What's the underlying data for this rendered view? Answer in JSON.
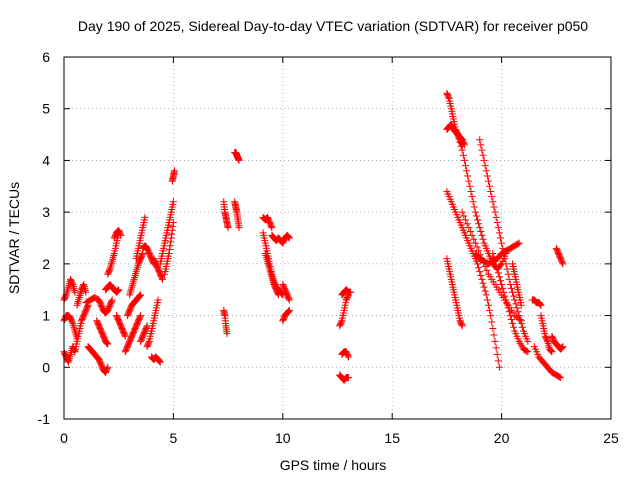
{
  "chart_data": {
    "type": "scatter",
    "title": "Day 190 of 2025, Sidereal Day-to-day VTEC variation (SDTVAR) for receiver p050",
    "xlabel": "GPS time / hours",
    "ylabel": "SDTVAR / TECUs",
    "xlim": [
      0,
      25
    ],
    "ylim": [
      -1,
      6
    ],
    "xticks": [
      0,
      5,
      10,
      15,
      20,
      25
    ],
    "yticks": [
      -1,
      0,
      1,
      2,
      3,
      4,
      5,
      6
    ],
    "xtick_labels": [
      "0",
      "5",
      "10",
      "15",
      "20",
      "25"
    ],
    "ytick_labels": [
      "-1",
      "0",
      "1",
      "2",
      "3",
      "4",
      "5",
      "6"
    ],
    "grid": true,
    "marker": "+",
    "color": "#ff0000",
    "series": [
      {
        "name": "SDTVAR",
        "tracks": [
          {
            "x": [
              0.0,
              0.1,
              0.2,
              0.3,
              0.4,
              0.5
            ],
            "y": [
              0.3,
              0.2,
              0.1,
              0.25,
              0.4,
              0.3
            ]
          },
          {
            "x": [
              0.0,
              0.1,
              0.2,
              0.3,
              0.4,
              0.5,
              0.6
            ],
            "y": [
              0.9,
              1.0,
              1.0,
              0.95,
              0.85,
              0.7,
              0.55
            ]
          },
          {
            "x": [
              0.0,
              0.1,
              0.2,
              0.3,
              0.4,
              0.5
            ],
            "y": [
              1.3,
              1.4,
              1.55,
              1.7,
              1.6,
              1.45
            ]
          },
          {
            "x": [
              0.5,
              0.6,
              0.7,
              0.8,
              0.9,
              1.0,
              1.1
            ],
            "y": [
              0.3,
              0.5,
              0.7,
              0.9,
              1.0,
              1.1,
              1.2
            ]
          },
          {
            "x": [
              0.6,
              0.7,
              0.8,
              0.9,
              1.0
            ],
            "y": [
              1.2,
              1.35,
              1.5,
              1.6,
              1.45
            ]
          },
          {
            "x": [
              1.0,
              1.2,
              1.4,
              1.6
            ],
            "y": [
              1.25,
              1.3,
              1.35,
              1.3
            ]
          },
          {
            "x": [
              1.1,
              1.2,
              1.3,
              1.4,
              1.5,
              1.6,
              1.7,
              1.8,
              1.9,
              2.0
            ],
            "y": [
              0.4,
              0.35,
              0.3,
              0.25,
              0.2,
              0.15,
              0.05,
              -0.05,
              -0.1,
              0.0
            ]
          },
          {
            "x": [
              1.5,
              1.6,
              1.7,
              1.8,
              1.9,
              2.0
            ],
            "y": [
              0.9,
              0.8,
              0.7,
              0.6,
              0.5,
              0.45
            ]
          },
          {
            "x": [
              1.6,
              1.7,
              1.8,
              1.9,
              2.0,
              2.1,
              2.2
            ],
            "y": [
              1.3,
              1.2,
              1.1,
              1.05,
              1.1,
              1.2,
              1.3
            ]
          },
          {
            "x": [
              1.9,
              2.0,
              2.1,
              2.2,
              2.3,
              2.4,
              2.5
            ],
            "y": [
              1.5,
              1.55,
              1.6,
              1.55,
              1.5,
              1.45,
              1.5
            ]
          },
          {
            "x": [
              2.0,
              2.1,
              2.2,
              2.3,
              2.4,
              2.5
            ],
            "y": [
              1.8,
              1.9,
              2.05,
              2.2,
              2.4,
              2.6
            ]
          },
          {
            "x": [
              2.3,
              2.4,
              2.5,
              2.6
            ],
            "y": [
              2.5,
              2.6,
              2.65,
              2.55
            ]
          },
          {
            "x": [
              2.4,
              2.5,
              2.6,
              2.7,
              2.8
            ],
            "y": [
              1.0,
              0.9,
              0.8,
              0.7,
              0.6
            ]
          },
          {
            "x": [
              2.8,
              2.9,
              3.0,
              3.1,
              3.2,
              3.3,
              3.4,
              3.5
            ],
            "y": [
              0.3,
              0.4,
              0.5,
              0.6,
              0.7,
              0.8,
              0.9,
              1.0
            ]
          },
          {
            "x": [
              2.9,
              3.0,
              3.1,
              3.2,
              3.3,
              3.4,
              3.5
            ],
            "y": [
              1.0,
              1.1,
              1.2,
              1.25,
              1.3,
              1.35,
              1.4
            ]
          },
          {
            "x": [
              3.0,
              3.1,
              3.2,
              3.3,
              3.4,
              3.5,
              3.6
            ],
            "y": [
              1.4,
              1.55,
              1.7,
              1.85,
              2.0,
              2.1,
              2.2
            ]
          },
          {
            "x": [
              3.3,
              3.4,
              3.5,
              3.6,
              3.7
            ],
            "y": [
              2.1,
              2.3,
              2.5,
              2.7,
              2.9
            ]
          },
          {
            "x": [
              3.6,
              3.7,
              3.8,
              3.9,
              4.0,
              4.1
            ],
            "y": [
              2.3,
              2.35,
              2.3,
              2.2,
              2.1,
              2.0
            ]
          },
          {
            "x": [
              3.5,
              3.6,
              3.7,
              3.8
            ],
            "y": [
              0.5,
              0.6,
              0.7,
              0.8
            ]
          },
          {
            "x": [
              3.8,
              3.9,
              4.0,
              4.1,
              4.2,
              4.3
            ],
            "y": [
              0.4,
              0.5,
              0.7,
              0.9,
              1.1,
              1.3
            ]
          },
          {
            "x": [
              4.0,
              4.1,
              4.2,
              4.3,
              4.4
            ],
            "y": [
              0.2,
              0.15,
              0.2,
              0.15,
              0.1
            ]
          },
          {
            "x": [
              4.1,
              4.2,
              4.3,
              4.4,
              4.5
            ],
            "y": [
              2.1,
              2.0,
              1.9,
              1.8,
              1.7
            ]
          },
          {
            "x": [
              4.4,
              4.5,
              4.6,
              4.7,
              4.8,
              4.9,
              5.0
            ],
            "y": [
              2.0,
              2.2,
              2.4,
              2.6,
              2.8,
              3.0,
              3.2
            ]
          },
          {
            "x": [
              4.6,
              4.7,
              4.8,
              4.9,
              5.0
            ],
            "y": [
              1.8,
              2.0,
              2.2,
              2.5,
              2.8
            ]
          },
          {
            "x": [
              4.95,
              5.0,
              5.05
            ],
            "y": [
              3.6,
              3.7,
              3.8
            ]
          },
          {
            "x": [
              7.3,
              7.35,
              7.4,
              7.45,
              7.5
            ],
            "y": [
              3.2,
              3.0,
              2.9,
              2.8,
              2.7
            ]
          },
          {
            "x": [
              7.3,
              7.35,
              7.4,
              7.45
            ],
            "y": [
              1.1,
              1.0,
              0.8,
              0.65
            ]
          },
          {
            "x": [
              7.8,
              7.85,
              7.9,
              7.95,
              8.0
            ],
            "y": [
              3.2,
              3.1,
              3.0,
              2.85,
              2.7
            ]
          },
          {
            "x": [
              7.8,
              7.85,
              7.9,
              7.95,
              8.0
            ],
            "y": [
              4.15,
              4.15,
              4.1,
              4.05,
              4.0
            ]
          },
          {
            "x": [
              9.1,
              9.2,
              9.3,
              9.4,
              9.5
            ],
            "y": [
              2.9,
              2.85,
              2.9,
              2.8,
              2.7
            ]
          },
          {
            "x": [
              9.1,
              9.2,
              9.3,
              9.4,
              9.5,
              9.6,
              9.7,
              9.8,
              9.9,
              10.0
            ],
            "y": [
              2.6,
              2.4,
              2.2,
              2.0,
              1.8,
              1.65,
              1.55,
              1.5,
              1.45,
              1.4
            ]
          },
          {
            "x": [
              9.2,
              9.3,
              9.4,
              9.5,
              9.6,
              9.7,
              9.8
            ],
            "y": [
              2.2,
              2.05,
              1.9,
              1.75,
              1.6,
              1.5,
              1.4
            ]
          },
          {
            "x": [
              9.5,
              9.6,
              9.7,
              9.8,
              9.9,
              10.0,
              10.1,
              10.2,
              10.3
            ],
            "y": [
              2.55,
              2.5,
              2.45,
              2.5,
              2.45,
              2.4,
              2.5,
              2.55,
              2.5
            ]
          },
          {
            "x": [
              10.0,
              10.1,
              10.2,
              10.3
            ],
            "y": [
              1.6,
              1.5,
              1.4,
              1.3
            ]
          },
          {
            "x": [
              10.0,
              10.1,
              10.2,
              10.3
            ],
            "y": [
              0.9,
              1.0,
              1.05,
              1.1
            ]
          },
          {
            "x": [
              12.6,
              12.7,
              12.8,
              12.9,
              13.0
            ],
            "y": [
              0.8,
              0.9,
              1.1,
              1.3,
              1.4
            ]
          },
          {
            "x": [
              12.7,
              12.8,
              12.9,
              13.0,
              13.1
            ],
            "y": [
              1.4,
              1.45,
              1.5,
              1.45,
              1.45
            ]
          },
          {
            "x": [
              12.7,
              12.8,
              12.9,
              13.0
            ],
            "y": [
              0.25,
              0.3,
              0.3,
              0.2
            ]
          },
          {
            "x": [
              12.6,
              12.7,
              12.8,
              12.9,
              13.0
            ],
            "y": [
              -0.15,
              -0.2,
              -0.25,
              -0.2,
              -0.2
            ]
          },
          {
            "x": [
              17.5,
              17.6,
              17.7,
              17.8,
              17.9,
              18.0,
              18.1,
              18.2
            ],
            "y": [
              5.3,
              5.2,
              5.0,
              4.8,
              4.6,
              4.5,
              4.4,
              4.3
            ]
          },
          {
            "x": [
              17.5,
              17.6,
              17.7,
              17.8,
              17.9,
              18.0,
              18.1,
              18.2,
              18.3
            ],
            "y": [
              4.6,
              4.65,
              4.7,
              4.6,
              4.55,
              4.5,
              4.45,
              4.4,
              4.3
            ]
          },
          {
            "x": [
              17.5,
              17.7,
              17.9,
              18.1,
              18.3,
              18.5,
              18.7,
              18.9,
              19.1,
              19.3,
              19.5,
              19.7,
              19.9
            ],
            "y": [
              3.4,
              3.2,
              3.0,
              2.8,
              2.6,
              2.4,
              2.2,
              2.0,
              1.7,
              1.4,
              1.0,
              0.5,
              0.0
            ]
          },
          {
            "x": [
              17.5,
              17.6,
              17.7,
              17.8,
              17.9,
              18.0,
              18.1,
              18.2
            ],
            "y": [
              2.1,
              1.9,
              1.7,
              1.5,
              1.3,
              1.1,
              0.9,
              0.8
            ]
          },
          {
            "x": [
              18.0,
              18.2,
              18.4,
              18.6,
              18.8,
              19.0,
              19.2,
              19.4,
              19.6,
              19.8,
              20.0,
              20.2
            ],
            "y": [
              4.5,
              4.2,
              3.8,
              3.4,
              3.0,
              2.7,
              2.4,
              2.2,
              2.0,
              1.9,
              2.0,
              2.2
            ]
          },
          {
            "x": [
              18.2,
              18.5,
              18.8,
              19.1,
              19.4,
              19.7,
              20.0,
              20.3,
              20.6,
              20.9
            ],
            "y": [
              3.0,
              2.7,
              2.4,
              2.1,
              1.8,
              1.6,
              1.4,
              1.2,
              1.0,
              0.9
            ]
          },
          {
            "x": [
              18.8,
              19.0,
              19.2,
              19.4,
              19.6,
              19.8,
              20.0,
              20.2,
              20.4,
              20.6,
              20.8
            ],
            "y": [
              2.2,
              2.1,
              2.05,
              2.0,
              2.05,
              2.1,
              2.2,
              2.25,
              2.3,
              2.35,
              2.4
            ]
          },
          {
            "x": [
              19.0,
              19.2,
              19.4,
              19.6,
              19.8,
              20.0,
              20.2,
              20.4,
              20.6,
              20.8,
              21.0,
              21.2
            ],
            "y": [
              4.4,
              4.0,
              3.6,
              3.2,
              2.8,
              2.4,
              2.0,
              1.6,
              1.3,
              1.0,
              0.7,
              0.5
            ]
          },
          {
            "x": [
              19.6,
              19.8,
              20.0,
              20.2,
              20.4,
              20.6,
              20.8,
              21.0,
              21.2
            ],
            "y": [
              2.2,
              1.9,
              1.6,
              1.3,
              1.0,
              0.7,
              0.5,
              0.35,
              0.3
            ]
          },
          {
            "x": [
              20.5,
              20.6,
              20.7,
              20.8,
              20.9
            ],
            "y": [
              2.0,
              1.8,
              1.6,
              1.4,
              1.2
            ]
          },
          {
            "x": [
              21.4,
              21.5,
              21.6,
              21.7,
              21.8
            ],
            "y": [
              1.3,
              1.3,
              1.25,
              1.25,
              1.2
            ]
          },
          {
            "x": [
              21.5,
              21.7,
              21.9,
              22.1,
              22.3,
              22.5,
              22.7
            ],
            "y": [
              0.4,
              0.2,
              0.1,
              0.0,
              -0.1,
              -0.15,
              -0.2
            ]
          },
          {
            "x": [
              21.8,
              21.9,
              22.0,
              22.1,
              22.2,
              22.3
            ],
            "y": [
              1.0,
              0.8,
              0.6,
              0.5,
              0.35,
              0.3
            ]
          },
          {
            "x": [
              22.3,
              22.4,
              22.5,
              22.6,
              22.7,
              22.8
            ],
            "y": [
              0.6,
              0.5,
              0.45,
              0.4,
              0.35,
              0.4
            ]
          },
          {
            "x": [
              22.5,
              22.6,
              22.7,
              22.8
            ],
            "y": [
              2.3,
              2.2,
              2.1,
              2.0
            ]
          }
        ]
      }
    ]
  }
}
